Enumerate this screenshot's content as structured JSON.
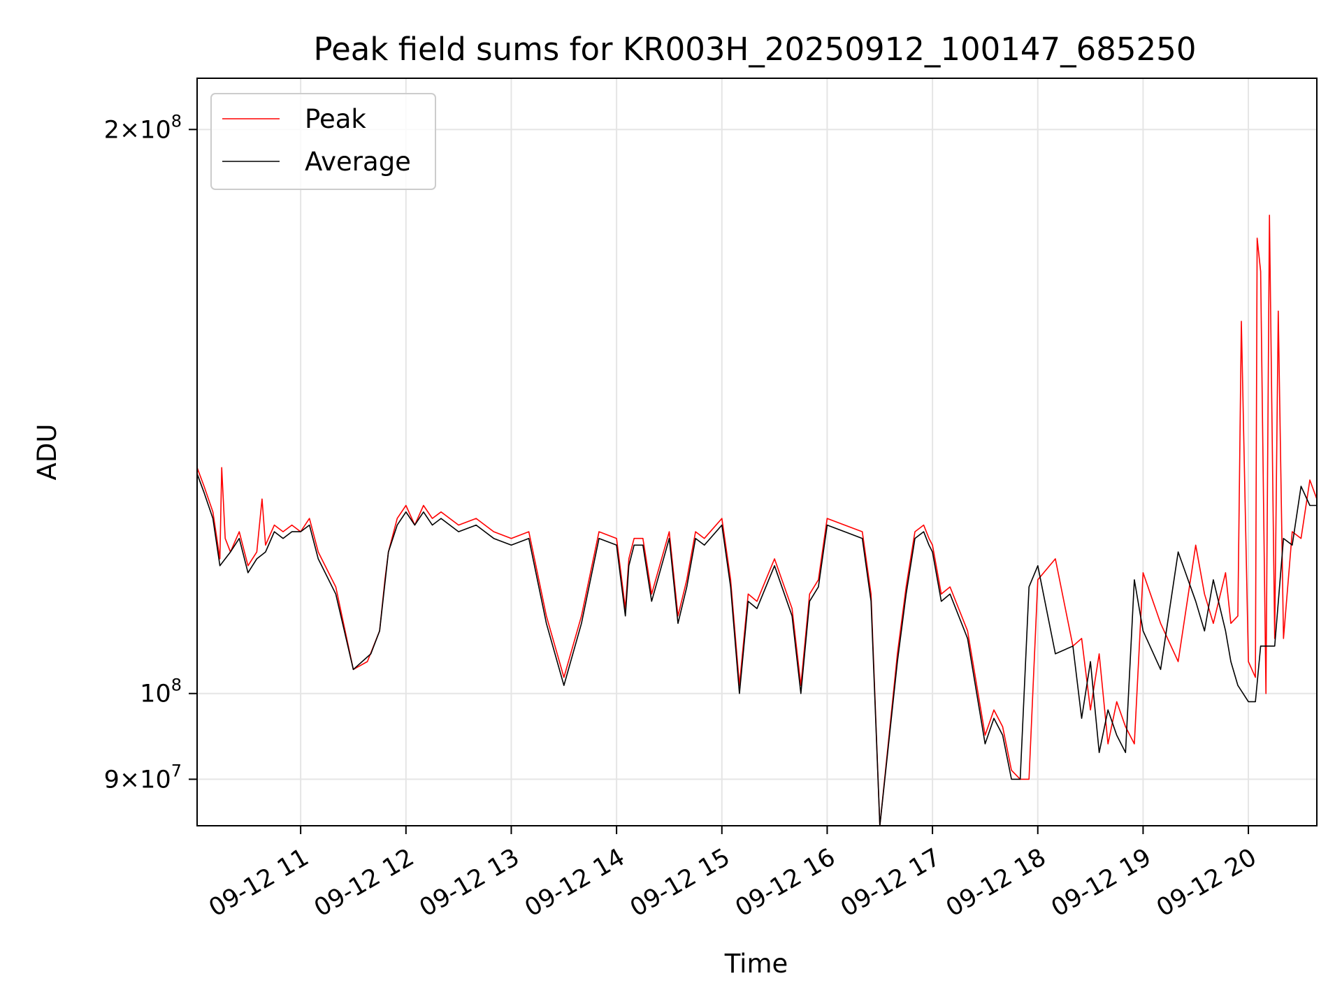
{
  "chart_data": {
    "type": "line",
    "title": "Peak field sums for KR003H_20250912_100147_685250",
    "xlabel": "Time",
    "ylabel": "ADU",
    "xlim": [
      "09-12 10:01",
      "09-12 20:39"
    ],
    "ylim": [
      85000000,
      213000000
    ],
    "y_scale": "log",
    "grid": true,
    "legend_position": "top-left",
    "x_ticks": [
      "09-12 11",
      "09-12 12",
      "09-12 13",
      "09-12 14",
      "09-12 15",
      "09-12 16",
      "09-12 17",
      "09-12 18",
      "09-12 19",
      "09-12 20"
    ],
    "y_ticks": [
      {
        "value": 200000000,
        "mantissa": "2",
        "exponent": "8"
      },
      {
        "value": 100000000,
        "mantissa": "",
        "exponent": "8"
      },
      {
        "value": 90000000,
        "mantissa": "9",
        "exponent": "7"
      }
    ],
    "series": [
      {
        "name": "Peak",
        "color": "#ff0000",
        "x": [
          "09-12 10:01",
          "09-12 10:05",
          "09-12 10:10",
          "09-12 10:14",
          "09-12 10:15",
          "09-12 10:17",
          "09-12 10:20",
          "09-12 10:25",
          "09-12 10:30",
          "09-12 10:35",
          "09-12 10:38",
          "09-12 10:40",
          "09-12 10:45",
          "09-12 10:50",
          "09-12 10:55",
          "09-12 11:00",
          "09-12 11:05",
          "09-12 11:10",
          "09-12 11:20",
          "09-12 11:30",
          "09-12 11:38",
          "09-12 11:45",
          "09-12 11:48",
          "09-12 11:50",
          "09-12 11:55",
          "09-12 12:00",
          "09-12 12:05",
          "09-12 12:10",
          "09-12 12:15",
          "09-12 12:20",
          "09-12 12:30",
          "09-12 12:40",
          "09-12 12:50",
          "09-12 13:00",
          "09-12 13:10",
          "09-12 13:20",
          "09-12 13:30",
          "09-12 13:40",
          "09-12 13:50",
          "09-12 14:00",
          "09-12 14:05",
          "09-12 14:07",
          "09-12 14:10",
          "09-12 14:15",
          "09-12 14:20",
          "09-12 14:30",
          "09-12 14:35",
          "09-12 14:40",
          "09-12 14:45",
          "09-12 14:50",
          "09-12 15:00",
          "09-12 15:05",
          "09-12 15:10",
          "09-12 15:15",
          "09-12 15:20",
          "09-12 15:30",
          "09-12 15:40",
          "09-12 15:45",
          "09-12 15:50",
          "09-12 15:55",
          "09-12 16:00",
          "09-12 16:10",
          "09-12 16:20",
          "09-12 16:25",
          "09-12 16:30",
          "09-12 16:40",
          "09-12 16:45",
          "09-12 16:50",
          "09-12 16:55",
          "09-12 16:58",
          "09-12 17:00",
          "09-12 17:05",
          "09-12 17:10",
          "09-12 17:20",
          "09-12 17:30",
          "09-12 17:35",
          "09-12 17:40",
          "09-12 17:45",
          "09-12 17:50",
          "09-12 17:55",
          "09-12 18:00",
          "09-12 18:10",
          "09-12 18:20",
          "09-12 18:25",
          "09-12 18:30",
          "09-12 18:35",
          "09-12 18:40",
          "09-12 18:45",
          "09-12 18:50",
          "09-12 18:55",
          "09-12 19:00",
          "09-12 19:10",
          "09-12 19:20",
          "09-12 19:30",
          "09-12 19:35",
          "09-12 19:40",
          "09-12 19:47",
          "09-12 19:50",
          "09-12 19:54",
          "09-12 19:56",
          "09-12 20:00",
          "09-12 20:04",
          "09-12 20:05",
          "09-12 20:07",
          "09-12 20:10",
          "09-12 20:12",
          "09-12 20:15",
          "09-12 20:17",
          "09-12 20:20",
          "09-12 20:25",
          "09-12 20:30",
          "09-12 20:35",
          "09-12 20:39"
        ],
        "values": [
          132000000,
          129000000,
          125000000,
          118000000,
          132000000,
          121000000,
          119000000,
          122000000,
          117000000,
          119000000,
          127000000,
          120000000,
          123000000,
          122000000,
          123000000,
          122000000,
          124000000,
          119000000,
          114000000,
          103000000,
          104000000,
          108000000,
          115000000,
          119000000,
          124000000,
          126000000,
          123000000,
          126000000,
          124000000,
          125000000,
          123000000,
          124000000,
          122000000,
          121000000,
          122000000,
          110000000,
          102000000,
          110000000,
          122000000,
          121000000,
          111000000,
          118000000,
          121000000,
          121000000,
          113000000,
          122000000,
          110000000,
          115000000,
          122000000,
          121000000,
          124000000,
          115000000,
          101000000,
          113000000,
          112000000,
          118000000,
          111000000,
          101000000,
          113000000,
          115000000,
          124000000,
          123000000,
          122000000,
          113000000,
          85000000,
          105000000,
          114000000,
          122000000,
          123000000,
          121000000,
          120000000,
          113000000,
          114000000,
          108000000,
          95000000,
          98000000,
          96000000,
          91000000,
          90000000,
          90000000,
          115000000,
          118000000,
          106000000,
          107000000,
          98000000,
          105000000,
          94000000,
          99000000,
          96000000,
          94000000,
          116000000,
          109000000,
          104000000,
          120000000,
          113000000,
          109000000,
          116000000,
          109000000,
          110000000,
          158000000,
          104000000,
          102000000,
          175000000,
          168000000,
          100000000,
          180000000,
          107000000,
          160000000,
          107000000,
          122000000,
          121000000,
          130000000,
          127000000
        ]
      },
      {
        "name": "Average",
        "color": "#000000",
        "x": [
          "09-12 10:01",
          "09-12 10:05",
          "09-12 10:10",
          "09-12 10:14",
          "09-12 10:17",
          "09-12 10:20",
          "09-12 10:25",
          "09-12 10:30",
          "09-12 10:35",
          "09-12 10:40",
          "09-12 10:45",
          "09-12 10:50",
          "09-12 10:55",
          "09-12 11:00",
          "09-12 11:05",
          "09-12 11:10",
          "09-12 11:20",
          "09-12 11:30",
          "09-12 11:40",
          "09-12 11:45",
          "09-12 11:50",
          "09-12 11:55",
          "09-12 12:00",
          "09-12 12:05",
          "09-12 12:10",
          "09-12 12:15",
          "09-12 12:20",
          "09-12 12:30",
          "09-12 12:40",
          "09-12 12:50",
          "09-12 13:00",
          "09-12 13:10",
          "09-12 13:20",
          "09-12 13:30",
          "09-12 13:40",
          "09-12 13:50",
          "09-12 14:00",
          "09-12 14:05",
          "09-12 14:07",
          "09-12 14:10",
          "09-12 14:15",
          "09-12 14:20",
          "09-12 14:30",
          "09-12 14:35",
          "09-12 14:40",
          "09-12 14:45",
          "09-12 14:50",
          "09-12 15:00",
          "09-12 15:05",
          "09-12 15:10",
          "09-12 15:15",
          "09-12 15:20",
          "09-12 15:30",
          "09-12 15:40",
          "09-12 15:45",
          "09-12 15:50",
          "09-12 15:55",
          "09-12 16:00",
          "09-12 16:10",
          "09-12 16:20",
          "09-12 16:25",
          "09-12 16:30",
          "09-12 16:40",
          "09-12 16:45",
          "09-12 16:50",
          "09-12 16:55",
          "09-12 16:58",
          "09-12 17:00",
          "09-12 17:05",
          "09-12 17:10",
          "09-12 17:20",
          "09-12 17:30",
          "09-12 17:35",
          "09-12 17:40",
          "09-12 17:45",
          "09-12 17:50",
          "09-12 17:55",
          "09-12 18:00",
          "09-12 18:10",
          "09-12 18:20",
          "09-12 18:25",
          "09-12 18:30",
          "09-12 18:35",
          "09-12 18:40",
          "09-12 18:45",
          "09-12 18:50",
          "09-12 18:55",
          "09-12 19:00",
          "09-12 19:10",
          "09-12 19:20",
          "09-12 19:30",
          "09-12 19:35",
          "09-12 19:40",
          "09-12 19:47",
          "09-12 19:50",
          "09-12 19:54",
          "09-12 20:00",
          "09-12 20:04",
          "09-12 20:07",
          "09-12 20:10",
          "09-12 20:15",
          "09-12 20:20",
          "09-12 20:25",
          "09-12 20:30",
          "09-12 20:35",
          "09-12 20:39"
        ],
        "values": [
          131000000,
          128000000,
          124000000,
          117000000,
          118000000,
          119000000,
          121000000,
          116000000,
          118000000,
          119000000,
          122000000,
          121000000,
          122000000,
          122000000,
          123000000,
          118000000,
          113000000,
          103000000,
          105000000,
          108000000,
          119000000,
          123000000,
          125000000,
          123000000,
          125000000,
          123000000,
          124000000,
          122000000,
          123000000,
          121000000,
          120000000,
          121000000,
          109000000,
          101000000,
          109000000,
          121000000,
          120000000,
          110000000,
          117000000,
          120000000,
          120000000,
          112000000,
          121000000,
          109000000,
          114000000,
          121000000,
          120000000,
          123000000,
          114000000,
          100000000,
          112000000,
          111000000,
          117000000,
          110000000,
          100000000,
          112000000,
          114000000,
          123000000,
          122000000,
          121000000,
          112000000,
          85000000,
          104000000,
          113000000,
          121000000,
          122000000,
          120000000,
          119000000,
          112000000,
          113000000,
          107000000,
          94000000,
          97000000,
          95000000,
          90000000,
          90000000,
          114000000,
          117000000,
          105000000,
          106000000,
          97000000,
          104000000,
          93000000,
          98000000,
          95000000,
          93000000,
          115000000,
          108000000,
          103000000,
          119000000,
          112000000,
          108000000,
          115000000,
          108000000,
          104000000,
          101000000,
          99000000,
          99000000,
          106000000,
          106000000,
          106000000,
          121000000,
          120000000,
          129000000,
          126000000,
          126000000
        ]
      }
    ]
  }
}
